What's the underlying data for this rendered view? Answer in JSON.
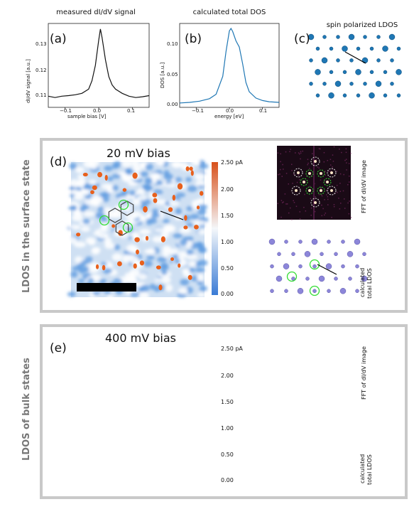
{
  "panel_a": {
    "title": "measured dI/dV signal",
    "label": "(a)",
    "xlabel": "sample bias [V]",
    "ylabel": "dI/dV signal [a.u.]",
    "xticks": [
      "−0.1",
      "0.0",
      "0.1"
    ],
    "yticks": [
      "0.13",
      "0.12",
      "0.11"
    ]
  },
  "panel_b": {
    "title": "calculated total DOS",
    "label": "(b)",
    "xlabel": "energy [eV]",
    "ylabel": "DOS [a.u.]",
    "xticks": [
      "−0.1",
      "0.0",
      "0.1"
    ],
    "yticks": [
      "0.10",
      "0.05",
      "0.00"
    ]
  },
  "panel_c": {
    "title": "spin polarized LDOS",
    "label": "(c)"
  },
  "panel_d": {
    "label": "(d)",
    "bias": "20 mV bias",
    "side_label": "LDOS in the surface state",
    "fft_label": "FFT of dI/dV image",
    "ldos_label_1": "calculated",
    "ldos_label_2": "total LDOS"
  },
  "panel_e": {
    "label": "(e)",
    "bias": "400 mV bias",
    "side_label": "LDOS of bulk states",
    "fft_label": "FFT of dI/dV image",
    "ldos_label_1": "calculated",
    "ldos_label_2": "total LDOS"
  },
  "colorbar": {
    "ticks": [
      "2.50 pA",
      "2.00",
      "1.50",
      "1.00",
      "0.50",
      "0.00"
    ]
  },
  "colors": {
    "line_a": "#111111",
    "line_b": "#1f77b4",
    "atom_blue": "#1f77b4",
    "atom_purple": "#8c86d9",
    "highlight": "#33dd33",
    "stm_low": "#4a90d9",
    "stm_high": "#e8601c"
  },
  "chart_data": [
    {
      "type": "line",
      "title": "measured dI/dV signal",
      "xlabel": "sample bias [V]",
      "ylabel": "dI/dV signal [a.u.]",
      "xlim": [
        -0.15,
        0.15
      ],
      "ylim": [
        0.107,
        0.137
      ],
      "x": [
        -0.15,
        -0.13,
        -0.11,
        -0.09,
        -0.07,
        -0.05,
        -0.03,
        -0.02,
        -0.01,
        0.0,
        0.005,
        0.01,
        0.02,
        0.03,
        0.04,
        0.05,
        0.07,
        0.09,
        0.11,
        0.13,
        0.15
      ],
      "y": [
        0.111,
        0.1105,
        0.111,
        0.1112,
        0.1115,
        0.112,
        0.1135,
        0.1165,
        0.122,
        0.131,
        0.135,
        0.132,
        0.124,
        0.118,
        0.115,
        0.1135,
        0.112,
        0.111,
        0.1105,
        0.1108,
        0.1112
      ]
    },
    {
      "type": "line",
      "title": "calculated total DOS",
      "xlabel": "energy [eV]",
      "ylabel": "DOS [a.u.]",
      "xlim": [
        -0.15,
        0.15
      ],
      "ylim": [
        -0.005,
        0.13
      ],
      "x": [
        -0.15,
        -0.12,
        -0.09,
        -0.06,
        -0.04,
        -0.02,
        -0.01,
        0.0,
        0.005,
        0.01,
        0.02,
        0.03,
        0.04,
        0.05,
        0.06,
        0.08,
        0.1,
        0.12,
        0.15
      ],
      "y": [
        0.002,
        0.003,
        0.005,
        0.009,
        0.016,
        0.045,
        0.085,
        0.118,
        0.122,
        0.117,
        0.102,
        0.092,
        0.065,
        0.035,
        0.02,
        0.01,
        0.006,
        0.004,
        0.003
      ]
    }
  ]
}
